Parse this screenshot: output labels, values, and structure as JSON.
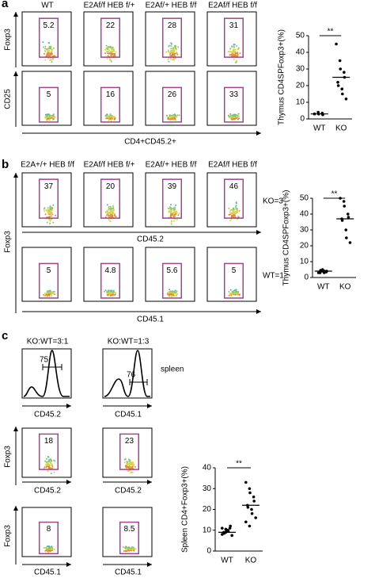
{
  "figure": {
    "a": {
      "label": "a",
      "headers": [
        "WT",
        "E2Af/f HEB f/+",
        "E2Af/+ HEB f/f",
        "E2Af/f HEB f/f"
      ],
      "y_labels": [
        "Foxp3",
        "CD25"
      ],
      "x_label": "CD4+CD45.2+",
      "gates": [
        [
          5.2,
          22,
          28,
          31
        ],
        [
          5,
          16,
          26,
          33
        ]
      ]
    },
    "b": {
      "label": "b",
      "headers": [
        "E2A+/+ HEB f/f",
        "E2Af/f HEB f/+",
        "E2Af/+ HEB f/f",
        "E2Af/f HEB f/f"
      ],
      "y_label": "Foxp3",
      "row_labels": [
        "KO=3",
        "WT=1"
      ],
      "x_labels": [
        "CD45.2",
        "CD45.1"
      ],
      "gates": [
        [
          37,
          20,
          39,
          46
        ],
        [
          5,
          4.8,
          5.6,
          5
        ]
      ]
    },
    "c": {
      "label": "c",
      "headers": [
        "KO:WT=3:1",
        "KO:WT=1:3"
      ],
      "histogram_gates": [
        75,
        76
      ],
      "tissue": "spleen",
      "histogram_x_labels": [
        "CD45.2",
        "CD45.1"
      ],
      "y_label": "Foxp3",
      "x_labels": [
        [
          "CD45.2",
          "CD45.2"
        ],
        [
          "CD45.1",
          "CD45.1"
        ]
      ],
      "gates": [
        [
          18,
          23
        ],
        [
          8,
          8.5
        ]
      ]
    }
  },
  "chart_data": [
    {
      "type": "strip",
      "ylabel": "Thymus CD4SPFoxp3+(%)",
      "categories": [
        "WT",
        "KO"
      ],
      "values": [
        [
          3,
          4,
          3,
          3.5,
          2.5
        ],
        [
          45,
          35,
          30,
          28,
          25,
          22,
          20,
          18,
          15,
          12
        ]
      ],
      "means": [
        3,
        25
      ],
      "significance": "**",
      "color": "#000000",
      "ylim": [
        0,
        50
      ],
      "yticks": [
        0,
        10,
        20,
        30,
        40,
        50
      ]
    },
    {
      "type": "strip",
      "ylabel": "Thymus CD4SPFoxp3+(%)",
      "categories": [
        "WT",
        "KO"
      ],
      "values": [
        [
          3,
          4,
          5,
          3.5,
          4,
          3,
          4.5,
          3,
          4
        ],
        [
          50,
          48,
          45,
          40,
          38,
          37,
          36,
          30,
          25,
          22
        ]
      ],
      "means": [
        4,
        37
      ],
      "significance": "**",
      "color": "#000000",
      "ylim": [
        0,
        50
      ],
      "yticks": [
        0,
        10,
        20,
        30,
        40,
        50
      ]
    },
    {
      "type": "strip",
      "ylabel": "Spleen CD4+Foxp3+(%)",
      "categories": [
        "WT",
        "KO"
      ],
      "values": [
        [
          8,
          9,
          10,
          11,
          12,
          9,
          8.5,
          10,
          9.5,
          7.5,
          11,
          10.5
        ],
        [
          33,
          30,
          28,
          26,
          24,
          22,
          21,
          20,
          18,
          16,
          14,
          12
        ]
      ],
      "means": [
        9,
        22
      ],
      "significance": "**",
      "color": "#000000",
      "ylim": [
        0,
        40
      ],
      "yticks": [
        0,
        10,
        20,
        30,
        40
      ]
    }
  ]
}
